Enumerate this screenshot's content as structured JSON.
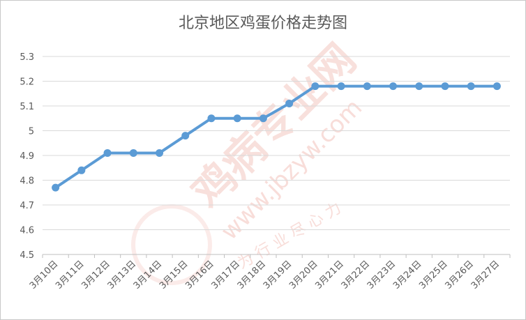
{
  "chart_data": {
    "type": "line",
    "title": "北京地区鸡蛋价格走势图",
    "xlabel": "",
    "ylabel": "",
    "categories": [
      "3月10日",
      "3月11日",
      "3月12日",
      "3月13日",
      "3月14日",
      "3月15日",
      "3月16日",
      "3月17日",
      "3月18日",
      "3月19日",
      "3月20日",
      "3月21日",
      "3月22日",
      "3月23日",
      "3月24日",
      "3月25日",
      "3月26日",
      "3月27日"
    ],
    "series": [
      {
        "values": [
          4.77,
          4.84,
          4.91,
          4.91,
          4.91,
          4.98,
          5.05,
          5.05,
          5.05,
          5.11,
          5.18,
          5.18,
          5.18,
          5.18,
          5.18,
          5.18,
          5.18,
          5.18
        ]
      }
    ],
    "ylim": [
      4.5,
      5.3
    ],
    "yticks": [
      "4.5",
      "4.6",
      "4.7",
      "4.8",
      "4.9",
      "5",
      "5.1",
      "5.2",
      "5.3"
    ],
    "grid": true,
    "legend": "none",
    "line_color": "#5b9bd5"
  },
  "watermark": {
    "text_main": "鸡病专业网",
    "text_url": "www.jbzyw.com",
    "text_slogan": "为 行 业 尽 心 力",
    "color": "#f3c7c0"
  }
}
